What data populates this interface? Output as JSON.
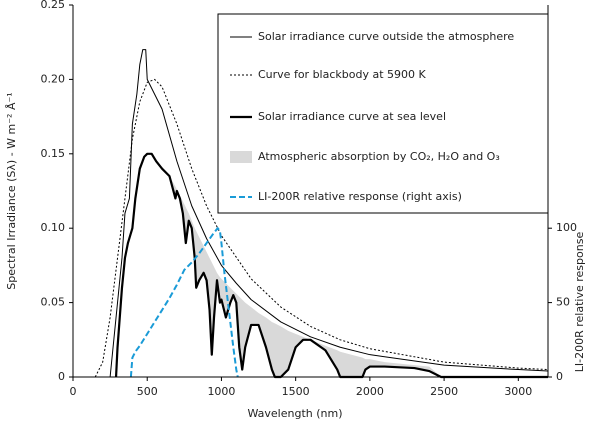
{
  "chart_data": {
    "type": "line",
    "x_label": "Wavelength (nm)",
    "y_label": "Spectral Irradiance (Sλ) - W m⁻² Å⁻¹",
    "y2_label": "LI-200R relative response",
    "xlim": [
      0,
      3200
    ],
    "xticks": [
      0,
      500,
      1000,
      1500,
      2000,
      2500,
      3000
    ],
    "ylim": [
      0,
      0.25
    ],
    "yticks": [
      0,
      0.05,
      {
        "value": 0.1,
        "label": "0.10"
      },
      0.15,
      {
        "value": 0.2,
        "label": "0.20"
      },
      0.25
    ],
    "y2lim": [
      0,
      250
    ],
    "y2ticks": [
      0,
      50,
      100
    ],
    "grid": false,
    "series": [
      {
        "name": "Solar irradiance curve outside the atmosphere",
        "color": "#000000",
        "style": "solid",
        "width": 1,
        "x": [
          250,
          280,
          300,
          330,
          350,
          380,
          400,
          430,
          450,
          470,
          490,
          500,
          550,
          600,
          700,
          800,
          900,
          1000,
          1100,
          1200,
          1400,
          1600,
          1800,
          2000,
          2500,
          3000,
          3200
        ],
        "values": [
          0,
          0.03,
          0.05,
          0.08,
          0.11,
          0.12,
          0.17,
          0.19,
          0.21,
          0.22,
          0.22,
          0.2,
          0.19,
          0.18,
          0.145,
          0.115,
          0.093,
          0.075,
          0.063,
          0.052,
          0.037,
          0.027,
          0.02,
          0.015,
          0.008,
          0.005,
          0.004
        ]
      },
      {
        "name": "Curve for blackbody at 5900 K",
        "color": "#000000",
        "style": "dotted",
        "width": 1,
        "x": [
          150,
          200,
          250,
          300,
          350,
          400,
          450,
          500,
          550,
          600,
          700,
          800,
          900,
          1000,
          1200,
          1400,
          1600,
          1800,
          2000,
          2500,
          3000,
          3200
        ],
        "values": [
          0,
          0.01,
          0.04,
          0.08,
          0.12,
          0.16,
          0.185,
          0.198,
          0.2,
          0.195,
          0.17,
          0.14,
          0.115,
          0.095,
          0.066,
          0.047,
          0.034,
          0.025,
          0.019,
          0.01,
          0.006,
          0.005
        ]
      },
      {
        "name": "Solar irradiance curve at sea level",
        "color": "#000000",
        "style": "solid",
        "width": 2.2,
        "x": [
          290,
          300,
          330,
          350,
          370,
          400,
          420,
          450,
          480,
          500,
          530,
          560,
          600,
          650,
          690,
          700,
          720,
          740,
          760,
          780,
          800,
          820,
          830,
          850,
          880,
          900,
          920,
          935,
          950,
          970,
          990,
          1000,
          1030,
          1060,
          1080,
          1100,
          1120,
          1140,
          1160,
          1200,
          1250,
          1300,
          1340,
          1360,
          1400,
          1450,
          1500,
          1550,
          1600,
          1700,
          1780,
          1800,
          1950,
          1970,
          2000,
          2100,
          2300,
          2400,
          2480,
          3200
        ],
        "values": [
          0,
          0.02,
          0.06,
          0.08,
          0.09,
          0.1,
          0.12,
          0.14,
          0.148,
          0.15,
          0.15,
          0.145,
          0.14,
          0.135,
          0.12,
          0.125,
          0.12,
          0.11,
          0.09,
          0.105,
          0.1,
          0.08,
          0.06,
          0.065,
          0.07,
          0.065,
          0.045,
          0.015,
          0.04,
          0.065,
          0.05,
          0.052,
          0.04,
          0.05,
          0.055,
          0.05,
          0.02,
          0.005,
          0.02,
          0.035,
          0.035,
          0.02,
          0.005,
          0,
          0,
          0.005,
          0.02,
          0.025,
          0.025,
          0.018,
          0.005,
          0,
          0,
          0.005,
          0.007,
          0.007,
          0.006,
          0.004,
          0,
          0
        ]
      },
      {
        "name": "Atmospheric absorption by CO₂, H₂O and O₃",
        "color": "#d9d9d9",
        "style": "area",
        "x": [
          290,
          300,
          330,
          350,
          370,
          400,
          420,
          450,
          480,
          500,
          530,
          560,
          600,
          650,
          690,
          700,
          720,
          740,
          760,
          780,
          800,
          820,
          830,
          850,
          880,
          900,
          920,
          935,
          950,
          970,
          990,
          1000,
          1030,
          1060,
          1080,
          1100,
          1120,
          1140,
          1160,
          1200,
          1250,
          1300,
          1340,
          1360,
          1400,
          1450,
          1500,
          1550,
          1600,
          1700,
          1780,
          1800,
          1950,
          1970,
          2000,
          2100,
          2300,
          2400,
          2480,
          3200
        ],
        "values": [
          0,
          0.02,
          0.06,
          0.08,
          0.09,
          0.1,
          0.12,
          0.14,
          0.148,
          0.15,
          0.15,
          0.145,
          0.14,
          0.135,
          0.128,
          0.126,
          0.122,
          0.118,
          0.114,
          0.11,
          0.105,
          0.1,
          0.098,
          0.094,
          0.088,
          0.084,
          0.08,
          0.077,
          0.074,
          0.07,
          0.067,
          0.066,
          0.063,
          0.06,
          0.058,
          0.056,
          0.054,
          0.052,
          0.05,
          0.047,
          0.043,
          0.04,
          0.037,
          0.036,
          0.034,
          0.031,
          0.029,
          0.027,
          0.025,
          0.021,
          0.018,
          0.017,
          0.013,
          0.012,
          0.012,
          0.01,
          0.008,
          0.007,
          0,
          0
        ]
      },
      {
        "name": "LI-200R relative response (right axis)",
        "color": "#1a9bd7",
        "style": "dashed",
        "width": 2,
        "axis": "y2",
        "x": [
          390,
          400,
          420,
          450,
          500,
          550,
          600,
          650,
          700,
          750,
          800,
          850,
          900,
          950,
          975,
          990,
          1000,
          1020,
          1050,
          1080,
          1100,
          1110
        ],
        "values": [
          0,
          13,
          17,
          21,
          29,
          37,
          45,
          53,
          62,
          72,
          77,
          83,
          90,
          97,
          100,
          98,
          90,
          70,
          45,
          20,
          5,
          0
        ]
      }
    ]
  }
}
